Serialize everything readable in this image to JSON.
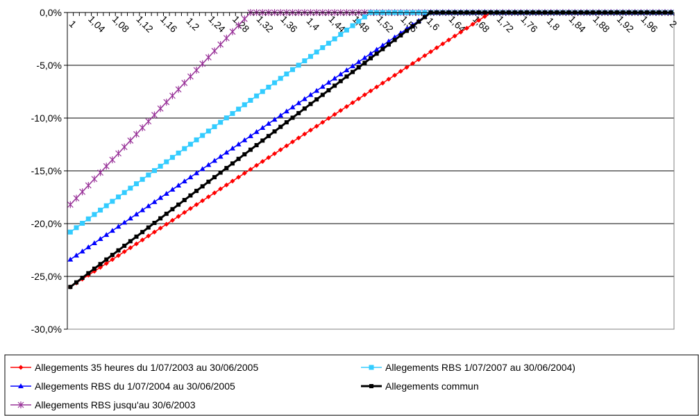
{
  "chart_data": {
    "type": "line",
    "x": {
      "start": 1.0,
      "end": 2.0,
      "step": 0.01
    },
    "x_tick_labels": [
      "1",
      "1,04",
      "1,08",
      "1,12",
      "1,16",
      "1,2",
      "1,24",
      "1,28",
      "1,32",
      "1,36",
      "1,4",
      "1,44",
      "1,48",
      "1,52",
      "1,56",
      "1,6",
      "1,64",
      "1,68",
      "1,72",
      "1,76",
      "1,8",
      "1,84",
      "1,88",
      "1,92",
      "1,96",
      "2"
    ],
    "y_tick_labels": [
      "0,0%",
      "-5,0%",
      "-10,0%",
      "-15,0%",
      "-20,0%",
      "-25,0%",
      "-30,0%"
    ],
    "ylim": [
      -0.3,
      0.0
    ],
    "grid": true,
    "legend_position": "bottom",
    "series": [
      {
        "name": "Allegements 35 heures du 1/07/2003 au 30/06/2005",
        "color": "#ff0000",
        "marker": "diamond",
        "start_value": -0.26,
        "zero_at_x": 1.7
      },
      {
        "name": "Allegements RBS 1/07/2007 au 30/06/2004)",
        "color": "#33ccff",
        "marker": "square",
        "start_value": -0.208,
        "zero_at_x": 1.5
      },
      {
        "name": "Allegements RBS du 1/07/2004 au 30/06/2005",
        "color": "#0000ff",
        "marker": "triangle",
        "start_value": -0.234,
        "zero_at_x": 1.6
      },
      {
        "name": "Allegements commun",
        "color": "#000000",
        "marker": "square-thick",
        "start_value": -0.26,
        "zero_at_x": 1.6
      },
      {
        "name": "Allegements RBS jusqu'au 30/6/2003",
        "color": "#993399",
        "marker": "star",
        "start_value": -0.182,
        "zero_at_x": 1.3
      }
    ]
  }
}
